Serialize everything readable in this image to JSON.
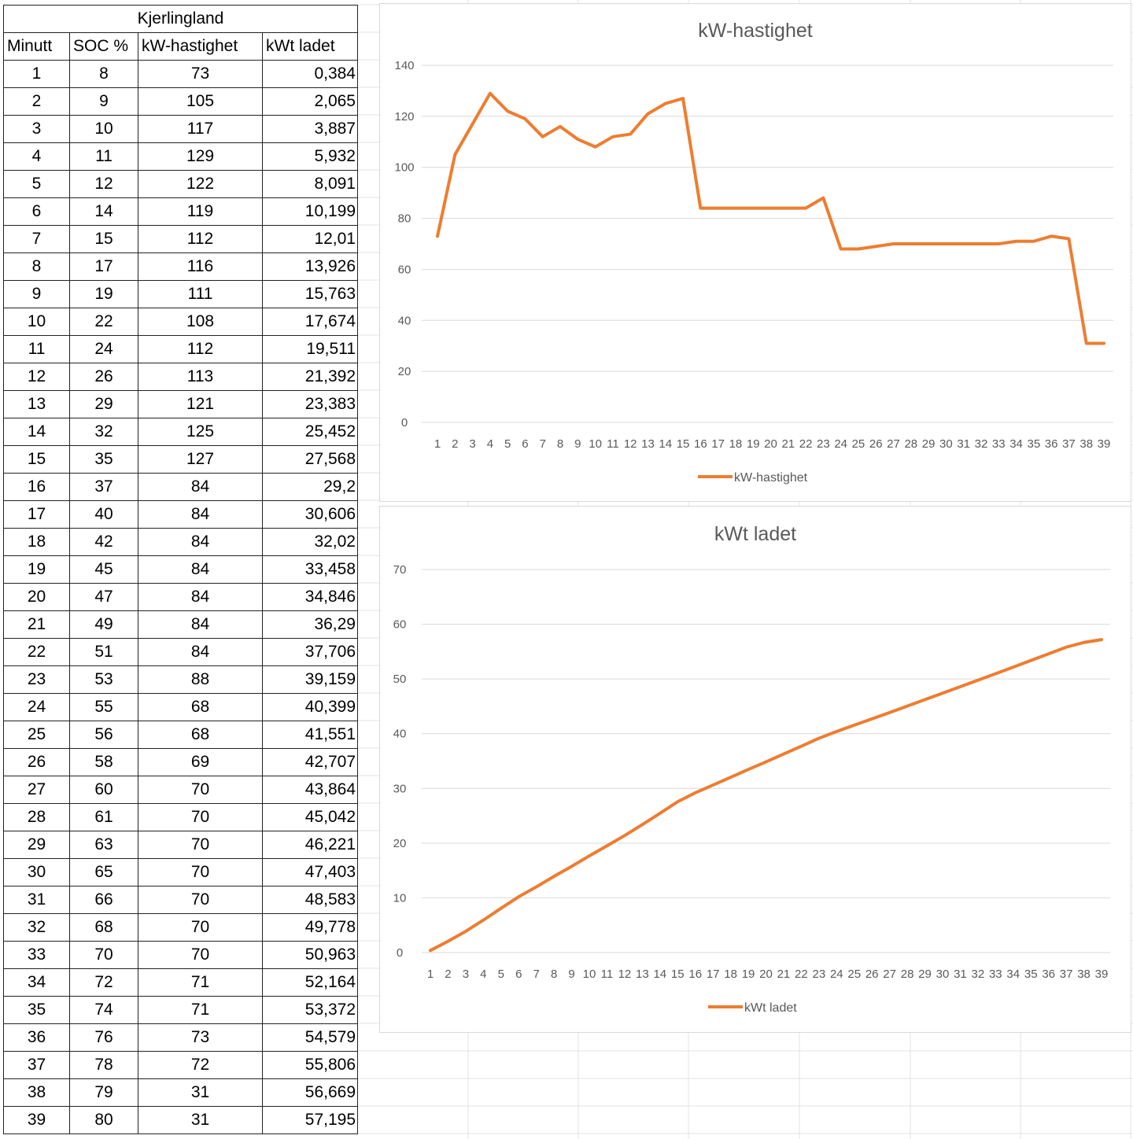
{
  "table": {
    "title": "Kjerlingland",
    "headers": [
      "Minutt",
      "SOC %",
      "kW-hastighet",
      "kWt ladet"
    ],
    "rows": [
      [
        "1",
        "8",
        "73",
        "0,384"
      ],
      [
        "2",
        "9",
        "105",
        "2,065"
      ],
      [
        "3",
        "10",
        "117",
        "3,887"
      ],
      [
        "4",
        "11",
        "129",
        "5,932"
      ],
      [
        "5",
        "12",
        "122",
        "8,091"
      ],
      [
        "6",
        "14",
        "119",
        "10,199"
      ],
      [
        "7",
        "15",
        "112",
        "12,01"
      ],
      [
        "8",
        "17",
        "116",
        "13,926"
      ],
      [
        "9",
        "19",
        "111",
        "15,763"
      ],
      [
        "10",
        "22",
        "108",
        "17,674"
      ],
      [
        "11",
        "24",
        "112",
        "19,511"
      ],
      [
        "12",
        "26",
        "113",
        "21,392"
      ],
      [
        "13",
        "29",
        "121",
        "23,383"
      ],
      [
        "14",
        "32",
        "125",
        "25,452"
      ],
      [
        "15",
        "35",
        "127",
        "27,568"
      ],
      [
        "16",
        "37",
        "84",
        "29,2"
      ],
      [
        "17",
        "40",
        "84",
        "30,606"
      ],
      [
        "18",
        "42",
        "84",
        "32,02"
      ],
      [
        "19",
        "45",
        "84",
        "33,458"
      ],
      [
        "20",
        "47",
        "84",
        "34,846"
      ],
      [
        "21",
        "49",
        "84",
        "36,29"
      ],
      [
        "22",
        "51",
        "84",
        "37,706"
      ],
      [
        "23",
        "53",
        "88",
        "39,159"
      ],
      [
        "24",
        "55",
        "68",
        "40,399"
      ],
      [
        "25",
        "56",
        "68",
        "41,551"
      ],
      [
        "26",
        "58",
        "69",
        "42,707"
      ],
      [
        "27",
        "60",
        "70",
        "43,864"
      ],
      [
        "28",
        "61",
        "70",
        "45,042"
      ],
      [
        "29",
        "63",
        "70",
        "46,221"
      ],
      [
        "30",
        "65",
        "70",
        "47,403"
      ],
      [
        "31",
        "66",
        "70",
        "48,583"
      ],
      [
        "32",
        "68",
        "70",
        "49,778"
      ],
      [
        "33",
        "70",
        "70",
        "50,963"
      ],
      [
        "34",
        "72",
        "71",
        "52,164"
      ],
      [
        "35",
        "74",
        "71",
        "53,372"
      ],
      [
        "36",
        "76",
        "73",
        "54,579"
      ],
      [
        "37",
        "78",
        "72",
        "55,806"
      ],
      [
        "38",
        "79",
        "31",
        "56,669"
      ],
      [
        "39",
        "80",
        "31",
        "57,195"
      ]
    ]
  },
  "chart_data": [
    {
      "type": "line",
      "title": "kW-hastighet",
      "xlabel": "",
      "ylabel": "",
      "x": [
        1,
        2,
        3,
        4,
        5,
        6,
        7,
        8,
        9,
        10,
        11,
        12,
        13,
        14,
        15,
        16,
        17,
        18,
        19,
        20,
        21,
        22,
        23,
        24,
        25,
        26,
        27,
        28,
        29,
        30,
        31,
        32,
        33,
        34,
        35,
        36,
        37,
        38,
        39
      ],
      "series": [
        {
          "name": "kW-hastighet",
          "values": [
            73,
            105,
            117,
            129,
            122,
            119,
            112,
            116,
            111,
            108,
            112,
            113,
            121,
            125,
            127,
            84,
            84,
            84,
            84,
            84,
            84,
            84,
            88,
            68,
            68,
            69,
            70,
            70,
            70,
            70,
            70,
            70,
            70,
            71,
            71,
            73,
            72,
            31,
            31
          ]
        }
      ],
      "ylim": [
        0,
        140
      ],
      "yticks": [
        0,
        20,
        40,
        60,
        80,
        100,
        120,
        140
      ],
      "grid": true,
      "legend": "bottom",
      "color": "#ED7D31"
    },
    {
      "type": "line",
      "title": "kWt ladet",
      "xlabel": "",
      "ylabel": "",
      "x": [
        1,
        2,
        3,
        4,
        5,
        6,
        7,
        8,
        9,
        10,
        11,
        12,
        13,
        14,
        15,
        16,
        17,
        18,
        19,
        20,
        21,
        22,
        23,
        24,
        25,
        26,
        27,
        28,
        29,
        30,
        31,
        32,
        33,
        34,
        35,
        36,
        37,
        38,
        39
      ],
      "series": [
        {
          "name": "kWt ladet",
          "values": [
            0.384,
            2.065,
            3.887,
            5.932,
            8.091,
            10.199,
            12.01,
            13.926,
            15.763,
            17.674,
            19.511,
            21.392,
            23.383,
            25.452,
            27.568,
            29.2,
            30.606,
            32.02,
            33.458,
            34.846,
            36.29,
            37.706,
            39.159,
            40.399,
            41.551,
            42.707,
            43.864,
            45.042,
            46.221,
            47.403,
            48.583,
            49.778,
            50.963,
            52.164,
            53.372,
            54.579,
            55.806,
            56.669,
            57.195
          ]
        }
      ],
      "ylim": [
        0,
        70
      ],
      "yticks": [
        0,
        10,
        20,
        30,
        40,
        50,
        60,
        70
      ],
      "grid": true,
      "legend": "bottom",
      "color": "#ED7D31"
    }
  ]
}
